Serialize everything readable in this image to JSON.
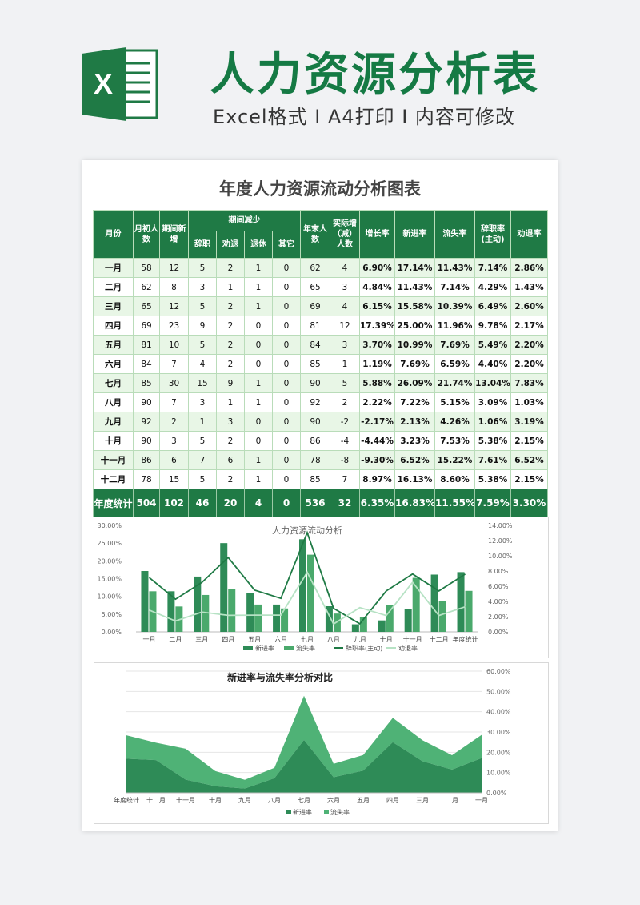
{
  "banner": {
    "icon_letter": "X",
    "title": "人力资源分析表",
    "subtitle": "Excel格式 I A4打印 I 内容可修改"
  },
  "doc_title": "年度人力资源流动分析图表",
  "table": {
    "headers": {
      "month": "月份",
      "start": "月初人数",
      "new": "期间新增",
      "decrease": "期间减少",
      "resign": "辞职",
      "dismiss": "劝退",
      "retire": "退休",
      "other": "其它",
      "end": "年末人数",
      "actual": "实际增（减）人数",
      "growth": "增长率",
      "new_rate": "新进率",
      "loss_rate": "流失率",
      "resign_rate": "辞职率(主动)",
      "dismiss_rate": "劝退率"
    },
    "rows": [
      [
        "一月",
        "58",
        "12",
        "5",
        "2",
        "1",
        "0",
        "62",
        "4",
        "6.90%",
        "17.14%",
        "11.43%",
        "7.14%",
        "2.86%"
      ],
      [
        "二月",
        "62",
        "8",
        "3",
        "1",
        "1",
        "0",
        "65",
        "3",
        "4.84%",
        "11.43%",
        "7.14%",
        "4.29%",
        "1.43%"
      ],
      [
        "三月",
        "65",
        "12",
        "5",
        "2",
        "1",
        "0",
        "69",
        "4",
        "6.15%",
        "15.58%",
        "10.39%",
        "6.49%",
        "2.60%"
      ],
      [
        "四月",
        "69",
        "23",
        "9",
        "2",
        "0",
        "0",
        "81",
        "12",
        "17.39%",
        "25.00%",
        "11.96%",
        "9.78%",
        "2.17%"
      ],
      [
        "五月",
        "81",
        "10",
        "5",
        "2",
        "0",
        "0",
        "84",
        "3",
        "3.70%",
        "10.99%",
        "7.69%",
        "5.49%",
        "2.20%"
      ],
      [
        "六月",
        "84",
        "7",
        "4",
        "2",
        "0",
        "0",
        "85",
        "1",
        "1.19%",
        "7.69%",
        "6.59%",
        "4.40%",
        "2.20%"
      ],
      [
        "七月",
        "85",
        "30",
        "15",
        "9",
        "1",
        "0",
        "90",
        "5",
        "5.88%",
        "26.09%",
        "21.74%",
        "13.04%",
        "7.83%"
      ],
      [
        "八月",
        "90",
        "7",
        "3",
        "1",
        "1",
        "0",
        "92",
        "2",
        "2.22%",
        "7.22%",
        "5.15%",
        "3.09%",
        "1.03%"
      ],
      [
        "九月",
        "92",
        "2",
        "1",
        "3",
        "0",
        "0",
        "90",
        "-2",
        "-2.17%",
        "2.13%",
        "4.26%",
        "1.06%",
        "3.19%"
      ],
      [
        "十月",
        "90",
        "3",
        "5",
        "2",
        "0",
        "0",
        "86",
        "-4",
        "-4.44%",
        "3.23%",
        "7.53%",
        "5.38%",
        "2.15%"
      ],
      [
        "十一月",
        "86",
        "6",
        "7",
        "6",
        "1",
        "0",
        "78",
        "-8",
        "-9.30%",
        "6.52%",
        "15.22%",
        "7.61%",
        "6.52%"
      ],
      [
        "十二月",
        "78",
        "15",
        "5",
        "2",
        "1",
        "0",
        "85",
        "7",
        "8.97%",
        "16.13%",
        "8.60%",
        "5.38%",
        "2.15%"
      ]
    ],
    "total": [
      "年度统计",
      "504",
      "102",
      "46",
      "20",
      "4",
      "0",
      "536",
      "32",
      "6.35%",
      "16.83%",
      "11.55%",
      "7.59%",
      "3.30%"
    ]
  },
  "chart_data": [
    {
      "type": "bar",
      "title": "人力资源流动分析",
      "categories": [
        "一月",
        "二月",
        "三月",
        "四月",
        "五月",
        "六月",
        "七月",
        "八月",
        "九月",
        "十月",
        "十一月",
        "十二月",
        "年度统计"
      ],
      "y_left_ticks": [
        "0.00%",
        "5.00%",
        "10.00%",
        "15.00%",
        "20.00%",
        "25.00%",
        "30.00%"
      ],
      "y_right_ticks": [
        "0.00%",
        "2.00%",
        "4.00%",
        "6.00%",
        "8.00%",
        "10.00%",
        "12.00%",
        "14.00%"
      ],
      "ylim_left": [
        0,
        30
      ],
      "ylim_right": [
        0,
        14
      ],
      "series": [
        {
          "name": "新进率",
          "type": "bar",
          "axis": "left",
          "color": "#2e8b57",
          "values": [
            17.14,
            11.43,
            15.58,
            25.0,
            10.99,
            7.69,
            26.09,
            7.22,
            2.13,
            3.23,
            6.52,
            16.13,
            16.83
          ]
        },
        {
          "name": "流失率",
          "type": "bar",
          "axis": "left",
          "color": "#4aa96c",
          "values": [
            11.43,
            7.14,
            10.39,
            11.96,
            7.69,
            6.59,
            21.74,
            5.15,
            4.26,
            7.53,
            15.22,
            8.6,
            11.55
          ]
        },
        {
          "name": "辞职率(主动)",
          "type": "line",
          "axis": "right",
          "color": "#1f7a45",
          "values": [
            7.14,
            4.29,
            6.49,
            9.78,
            5.49,
            4.4,
            13.04,
            3.09,
            1.06,
            5.38,
            7.61,
            5.38,
            7.59
          ]
        },
        {
          "name": "劝退率",
          "type": "line",
          "axis": "right",
          "color": "#b6e2c4",
          "values": [
            2.86,
            1.43,
            2.6,
            2.17,
            2.2,
            2.2,
            7.83,
            1.03,
            3.19,
            2.15,
            6.52,
            2.15,
            3.3
          ]
        }
      ]
    },
    {
      "type": "area",
      "title": "新进率与流失率分析对比",
      "categories": [
        "年度统计",
        "十二月",
        "十一月",
        "十月",
        "九月",
        "八月",
        "七月",
        "六月",
        "五月",
        "四月",
        "三月",
        "二月",
        "一月"
      ],
      "y_ticks": [
        "0.00%",
        "10.00%",
        "20.00%",
        "30.00%",
        "40.00%",
        "50.00%",
        "60.00%"
      ],
      "ylim": [
        0,
        60
      ],
      "series": [
        {
          "name": "新进率",
          "color": "#2e8b57",
          "values": [
            16.83,
            16.13,
            6.52,
            3.23,
            2.13,
            7.22,
            26.09,
            7.69,
            10.99,
            25.0,
            15.58,
            11.43,
            17.14
          ]
        },
        {
          "name": "流失率",
          "color": "#4fb276",
          "values": [
            11.55,
            8.6,
            15.22,
            7.53,
            4.26,
            5.15,
            21.74,
            6.59,
            7.69,
            11.96,
            10.39,
            7.14,
            11.43
          ]
        }
      ]
    }
  ]
}
